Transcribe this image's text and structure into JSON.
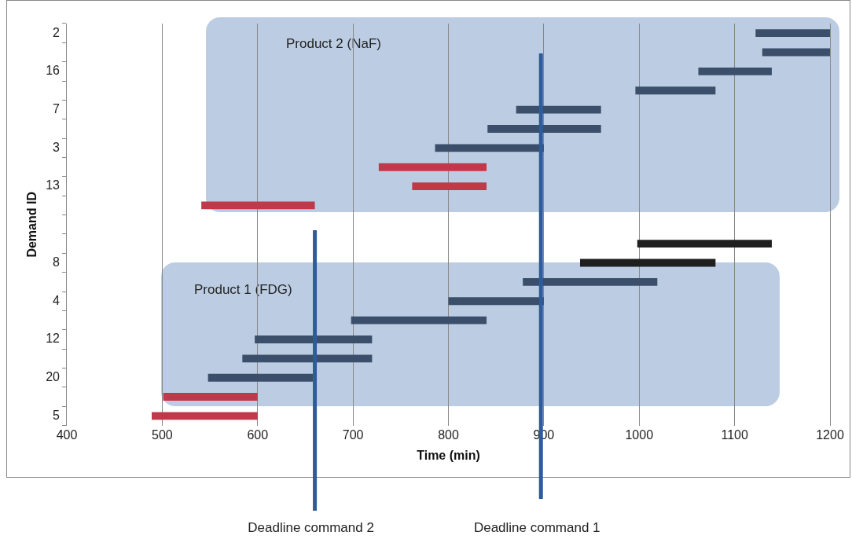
{
  "chart_data": {
    "type": "bar",
    "orientation": "horizontal",
    "xlabel": "Time (min)",
    "ylabel": "Demand ID",
    "categories": [
      "2",
      null,
      "16",
      null,
      "7",
      null,
      "3",
      null,
      "13",
      null,
      null,
      null,
      "8",
      null,
      "4",
      null,
      "12",
      null,
      "20",
      null,
      "5"
    ],
    "base": [
      1122,
      1129,
      1062,
      996,
      871,
      841,
      786,
      727,
      762,
      541,
      null,
      998,
      938,
      878,
      800,
      698,
      597,
      584,
      548,
      501,
      489
    ],
    "values": [
      78,
      71,
      77,
      84,
      89,
      119,
      114,
      113,
      78,
      119,
      null,
      141,
      142,
      141,
      100,
      142,
      123,
      136,
      110,
      99,
      111
    ],
    "colors": [
      "#3b4f6b",
      "#3b4f6b",
      "#3b4f6b",
      "#3b4f6b",
      "#3b4f6b",
      "#3b4f6b",
      "#3b4f6b",
      "#c0394b",
      "#c0394b",
      "#c0394b",
      "#3b4f6b",
      "#1f1f1f",
      "#1f1f1f",
      "#3b4f6b",
      "#3b4f6b",
      "#3b4f6b",
      "#3b4f6b",
      "#3b4f6b",
      "#3b4f6b",
      "#c0394b",
      "#c0394b"
    ],
    "xlim": [
      400,
      1200
    ],
    "xticks": [
      400,
      500,
      600,
      700,
      800,
      900,
      {
        "value": 1000,
        "label": "1000"
      },
      {
        "value": 1100,
        "label": "1100"
      },
      {
        "value": 1200,
        "label": "1200"
      }
    ],
    "grid": "x",
    "legend": false,
    "annotations": [
      "Product 2 (NaF)",
      "Product 1 (FDG)"
    ],
    "ref_lines": [
      {
        "axis": "x",
        "value": 660,
        "label": "Deadline command 2",
        "color": "#2e5c9a"
      },
      {
        "axis": "x",
        "value": 897,
        "label": "Deadline command 1",
        "color": "#2e5c9a"
      }
    ]
  }
}
